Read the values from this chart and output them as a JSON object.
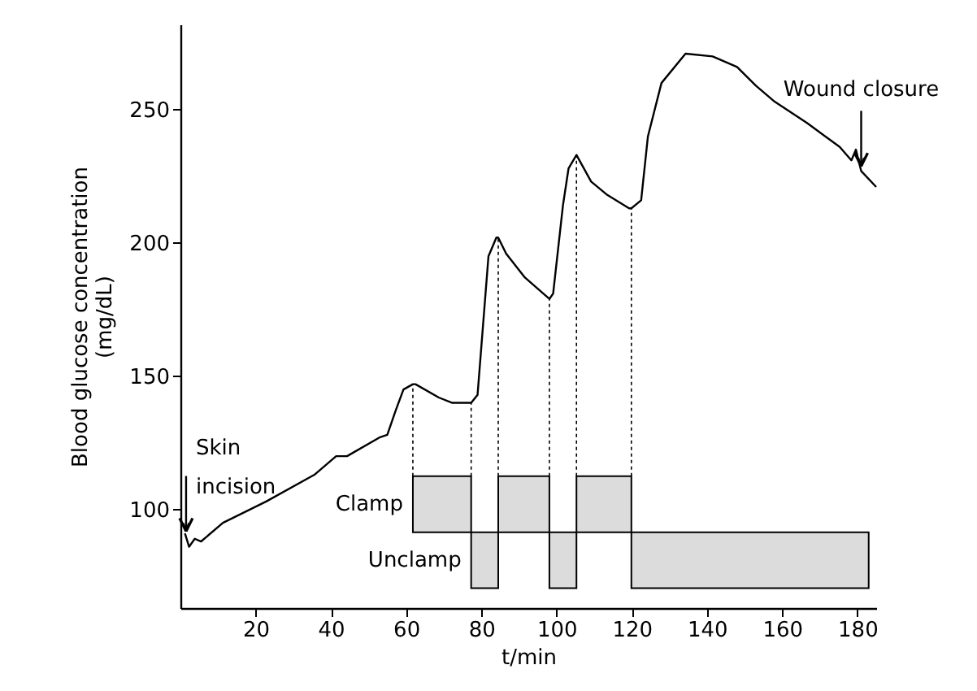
{
  "chart_data": {
    "type": "line",
    "xlabel": "t/min",
    "ylabel": "Blood glucose concentration\n(mg/dL)",
    "xlim": [
      0,
      185
    ],
    "ylim": [
      63,
      282
    ],
    "xticks": [
      20,
      40,
      60,
      80,
      100,
      120,
      140,
      160,
      180
    ],
    "yticks": [
      100,
      150,
      200,
      250
    ],
    "grid": false,
    "line_style": "solid",
    "marker": "none",
    "series": [
      {
        "color": "#000000",
        "x": [
          1.2,
          2.3,
          3.8,
          5.5,
          11.3,
          22.8,
          35.6,
          41.4,
          44.3,
          52.9,
          55.0,
          57.2,
          59.3,
          61.8,
          62.5,
          68.7,
          72.3,
          77.3,
          79.0,
          81.9,
          84.0,
          84.5,
          86.6,
          91.6,
          98.1,
          99.1,
          101.7,
          103.2,
          105.3,
          109.2,
          113.5,
          119.3,
          119.9,
          122.5,
          124.3,
          127.9,
          134.3,
          141.5,
          148.0,
          153.0,
          158.0,
          166.6,
          175.3,
          178.4,
          179.6,
          181.0,
          185.0
        ],
        "values": [
          91,
          86,
          89,
          88,
          95,
          103,
          113,
          120,
          120,
          127,
          128,
          137,
          145,
          147,
          147,
          142,
          140,
          140,
          143,
          195,
          202,
          202,
          196,
          187,
          179,
          181,
          214,
          228,
          233,
          223,
          218,
          213,
          213,
          216,
          240,
          260,
          271,
          270,
          266,
          259,
          253,
          245,
          236,
          231,
          235,
          227,
          221
        ]
      }
    ],
    "bands": [
      {
        "axis": "x",
        "from": 61.8,
        "to": 77.3,
        "label": "Clamp",
        "color": "#dcdcdc"
      },
      {
        "axis": "x",
        "from": 84.5,
        "to": 98.1,
        "label": null,
        "color": "#dcdcdc"
      },
      {
        "axis": "x",
        "from": 105.3,
        "to": 119.9,
        "label": null,
        "color": "#dcdcdc"
      },
      {
        "axis": "x",
        "from": 77.3,
        "to": 84.5,
        "label": "Unclamp",
        "color": "#dcdcdc"
      },
      {
        "axis": "x",
        "from": 98.1,
        "to": 105.3,
        "label": null,
        "color": "#dcdcdc"
      },
      {
        "axis": "x",
        "from": 119.9,
        "to": 183,
        "label": null,
        "color": "#dcdcdc"
      }
    ],
    "ref_lines": [
      {
        "axis": "x",
        "value": 61.8,
        "line_style": "dotted"
      },
      {
        "axis": "x",
        "value": 77.3,
        "line_style": "dotted"
      },
      {
        "axis": "x",
        "value": 84.5,
        "line_style": "dotted"
      },
      {
        "axis": "x",
        "value": 98.1,
        "line_style": "dotted"
      },
      {
        "axis": "x",
        "value": 105.3,
        "line_style": "dotted"
      },
      {
        "axis": "x",
        "value": 119.9,
        "line_style": "dotted"
      }
    ],
    "annotations": [
      {
        "text": "Skin\nincision",
        "x": 1.5,
        "y": 90
      },
      {
        "text": "Wound closure",
        "x": 181,
        "y": 227
      }
    ]
  }
}
